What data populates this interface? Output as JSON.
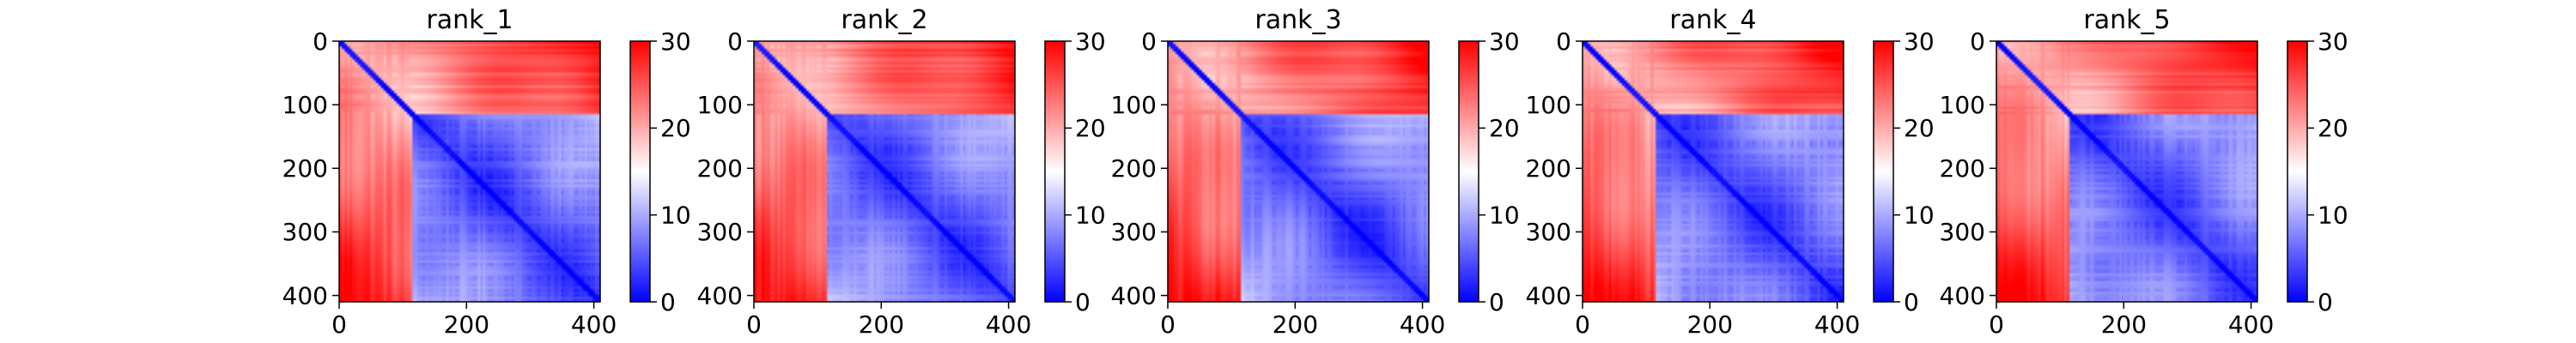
{
  "colors": {
    "low": "#0000ff",
    "mid": "#ffffff",
    "high": "#ff0000",
    "axis": "#000000"
  },
  "chart_data": [
    {
      "type": "heatmap",
      "title": "rank_1",
      "xlim": [
        0,
        410
      ],
      "ylim": [
        410,
        0
      ],
      "xticks": [
        0,
        200,
        400
      ],
      "yticks": [
        0,
        100,
        200,
        300,
        400
      ],
      "colorbar": {
        "range": [
          0,
          30
        ],
        "ticks": [
          0,
          10,
          20,
          30
        ]
      },
      "colormap": "bwr"
    },
    {
      "type": "heatmap",
      "title": "rank_2",
      "xlim": [
        0,
        410
      ],
      "ylim": [
        410,
        0
      ],
      "xticks": [
        0,
        200,
        400
      ],
      "yticks": [
        0,
        100,
        200,
        300,
        400
      ],
      "colorbar": {
        "range": [
          0,
          30
        ],
        "ticks": [
          0,
          10,
          20,
          30
        ]
      },
      "colormap": "bwr"
    },
    {
      "type": "heatmap",
      "title": "rank_3",
      "xlim": [
        0,
        410
      ],
      "ylim": [
        410,
        0
      ],
      "xticks": [
        0,
        200,
        400
      ],
      "yticks": [
        0,
        100,
        200,
        300,
        400
      ],
      "colorbar": {
        "range": [
          0,
          30
        ],
        "ticks": [
          0,
          10,
          20,
          30
        ]
      },
      "colormap": "bwr"
    },
    {
      "type": "heatmap",
      "title": "rank_4",
      "xlim": [
        0,
        410
      ],
      "ylim": [
        410,
        0
      ],
      "xticks": [
        0,
        200,
        400
      ],
      "yticks": [
        0,
        100,
        200,
        300,
        400
      ],
      "colorbar": {
        "range": [
          0,
          30
        ],
        "ticks": [
          0,
          10,
          20,
          30
        ]
      },
      "colormap": "bwr"
    },
    {
      "type": "heatmap",
      "title": "rank_5",
      "xlim": [
        0,
        410
      ],
      "ylim": [
        410,
        0
      ],
      "xticks": [
        0,
        200,
        400
      ],
      "yticks": [
        0,
        100,
        200,
        300,
        400
      ],
      "colorbar": {
        "range": [
          0,
          30
        ],
        "ticks": [
          0,
          10,
          20,
          30
        ]
      },
      "colormap": "bwr"
    }
  ]
}
